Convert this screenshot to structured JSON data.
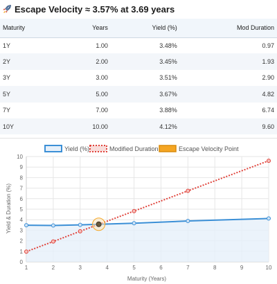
{
  "header": {
    "title": "Escape Velocity ≈ 3.57% at 3.69 years",
    "icon": "rocket-icon"
  },
  "table": {
    "columns": [
      "Maturity",
      "Years",
      "Yield (%)",
      "Mod Duration"
    ],
    "rows": [
      [
        "1Y",
        "1.00",
        "3.48%",
        "0.97"
      ],
      [
        "2Y",
        "2.00",
        "3.45%",
        "1.93"
      ],
      [
        "3Y",
        "3.00",
        "3.51%",
        "2.90"
      ],
      [
        "5Y",
        "5.00",
        "3.67%",
        "4.82"
      ],
      [
        "7Y",
        "7.00",
        "3.88%",
        "6.74"
      ],
      [
        "10Y",
        "10.00",
        "4.12%",
        "9.60"
      ]
    ]
  },
  "chart_data": {
    "type": "line",
    "xlabel": "Maturity (Years)",
    "ylabel": "Yield & Duration (%)",
    "xlim": [
      1,
      10
    ],
    "ylim": [
      0,
      10
    ],
    "xticks": [
      1,
      2,
      3,
      4,
      5,
      6,
      7,
      8,
      9,
      10
    ],
    "yticks": [
      0,
      1,
      2,
      3,
      4,
      5,
      6,
      7,
      8,
      9,
      10
    ],
    "grid": true,
    "legend_position": "top",
    "series": [
      {
        "name": "Yield (%)",
        "x": [
          1,
          2,
          3,
          5,
          7,
          10
        ],
        "y": [
          3.48,
          3.45,
          3.51,
          3.67,
          3.88,
          4.12
        ],
        "color": "#3b8fd6",
        "fill": "#e6f0fa",
        "style": "solid"
      },
      {
        "name": "Modified Duration",
        "x": [
          1,
          2,
          3,
          5,
          7,
          10
        ],
        "y": [
          0.97,
          1.93,
          2.9,
          4.82,
          6.74,
          9.6
        ],
        "color": "#e0433b",
        "style": "dotted"
      },
      {
        "name": "Escape Velocity Point",
        "x": [
          3.69
        ],
        "y": [
          3.57
        ],
        "color": "#f5a623",
        "style": "point"
      }
    ]
  }
}
